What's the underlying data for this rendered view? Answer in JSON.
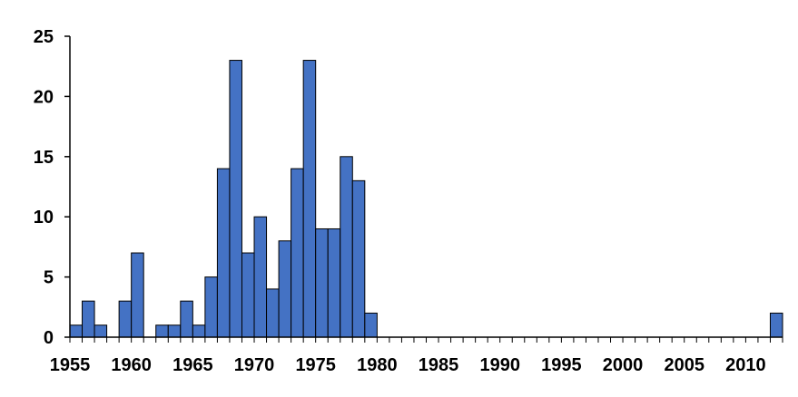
{
  "chart_data": {
    "type": "bar",
    "x": [
      1955,
      1956,
      1957,
      1958,
      1959,
      1960,
      1961,
      1962,
      1963,
      1964,
      1965,
      1966,
      1967,
      1968,
      1969,
      1970,
      1971,
      1972,
      1973,
      1974,
      1975,
      1976,
      1977,
      1978,
      1979,
      1980,
      1981,
      1982,
      1983,
      1984,
      1985,
      1986,
      1987,
      1988,
      1989,
      1990,
      1991,
      1992,
      1993,
      1994,
      1995,
      1996,
      1997,
      1998,
      1999,
      2000,
      2001,
      2002,
      2003,
      2004,
      2005,
      2006,
      2007,
      2008,
      2009,
      2010,
      2011,
      2012
    ],
    "values": [
      1,
      3,
      1,
      0,
      3,
      7,
      0,
      1,
      1,
      3,
      1,
      5,
      14,
      23,
      7,
      10,
      4,
      8,
      14,
      23,
      9,
      9,
      15,
      13,
      2,
      0,
      0,
      0,
      0,
      0,
      0,
      0,
      0,
      0,
      0,
      0,
      0,
      0,
      0,
      0,
      0,
      0,
      0,
      0,
      0,
      0,
      0,
      0,
      0,
      0,
      0,
      0,
      0,
      0,
      0,
      0,
      0,
      2
    ],
    "x_tick_labels": [
      "1955",
      "1960",
      "1965",
      "1970",
      "1975",
      "1980",
      "1985",
      "1990",
      "1995",
      "2000",
      "2005",
      "2010"
    ],
    "y_tick_labels": [
      "0",
      "5",
      "10",
      "15",
      "20",
      "25"
    ],
    "ylim": [
      0,
      25
    ],
    "title": "",
    "xlabel": "",
    "ylabel": "",
    "grid": false,
    "legend": "none",
    "bar_color": "#4472C4",
    "bar_edge_color": "#000000"
  }
}
